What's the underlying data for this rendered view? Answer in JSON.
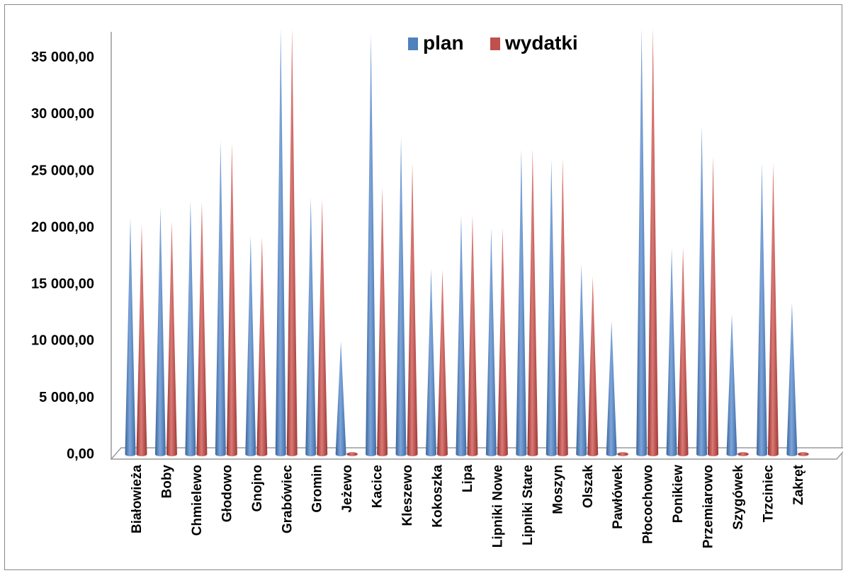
{
  "chart_data": {
    "type": "bar",
    "categories": [
      "Białowieża",
      "Boby",
      "Chmielewo",
      "Głodowo",
      "Gnojno",
      "Grabówiec",
      "Gromin",
      "Jeżewo",
      "Kacice",
      "Kleszewo",
      "Kokoszka",
      "Lipa",
      "Lipniki Nowe",
      "Lipniki Stare",
      "Moszyn",
      "Olszak",
      "Pawłówek",
      "Płocochowo",
      "Ponikiew",
      "Przemiarowo",
      "Szygówek",
      "Trzciniec",
      "Zakręt"
    ],
    "series": [
      {
        "name": "plan",
        "color": "#4F81BD",
        "values": [
          20800,
          21700,
          22300,
          27600,
          19200,
          37500,
          22600,
          9900,
          37000,
          27900,
          16300,
          21000,
          19900,
          26800,
          25900,
          16700,
          11700,
          37500,
          18100,
          28900,
          12300,
          25600,
          13300
        ]
      },
      {
        "name": "wydatki",
        "color": "#C0504D",
        "values": [
          20200,
          20500,
          22200,
          27400,
          19100,
          37500,
          22400,
          0,
          23500,
          25600,
          16200,
          21000,
          19900,
          26900,
          26000,
          15600,
          0,
          37500,
          18200,
          26200,
          0,
          25600,
          0
        ]
      }
    ],
    "ylim": [
      0,
      37500
    ],
    "yticks": [
      "0,00",
      "5 000,00",
      "10 000,00",
      "15 000,00",
      "20 000,00",
      "25 000,00",
      "30 000,00",
      "35 000,00"
    ],
    "ytick_values": [
      0,
      5000,
      10000,
      15000,
      20000,
      25000,
      30000,
      35000
    ],
    "legend": {
      "position": "top",
      "items": [
        "plan",
        "wydatki"
      ]
    },
    "title": "",
    "xlabel": "",
    "ylabel": "",
    "grid": false
  }
}
